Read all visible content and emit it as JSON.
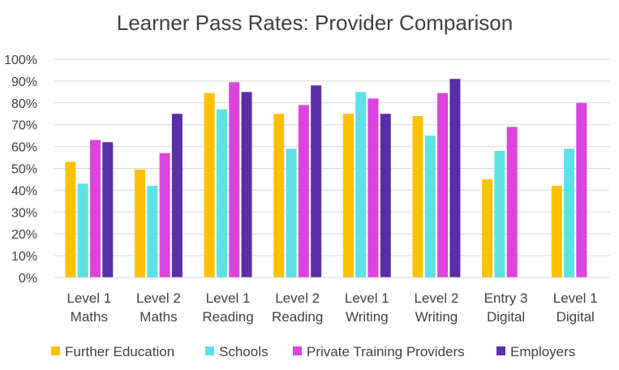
{
  "chart_data": {
    "type": "bar",
    "title": "Learner Pass Rates: Provider Comparison",
    "xlabel": "",
    "ylabel": "",
    "ylim": [
      0,
      100
    ],
    "y_ticks": [
      "0%",
      "10%",
      "20%",
      "30%",
      "40%",
      "50%",
      "60%",
      "70%",
      "80%",
      "90%",
      "100%"
    ],
    "y_tick_values": [
      0,
      10,
      20,
      30,
      40,
      50,
      60,
      70,
      80,
      90,
      100
    ],
    "categories": [
      [
        "Level 1",
        "Maths"
      ],
      [
        "Level 2",
        "Maths"
      ],
      [
        "Level 1",
        "Reading"
      ],
      [
        "Level 2",
        "Reading"
      ],
      [
        "Level 1",
        "Writing"
      ],
      [
        "Level 2",
        "Writing"
      ],
      [
        "Entry 3",
        "Digital"
      ],
      [
        "Level 1",
        "Digital"
      ]
    ],
    "grid": true,
    "legend_position": "bottom",
    "series": [
      {
        "name": "Further Education",
        "color": "#FFC000",
        "values": [
          53,
          49.5,
          84.5,
          75,
          75,
          74,
          45,
          42
        ]
      },
      {
        "name": "Schools",
        "color": "#5CE1E6",
        "values": [
          43,
          42,
          77,
          59,
          85,
          65,
          58,
          59
        ]
      },
      {
        "name": "Private Training Providers",
        "color": "#DD44DD",
        "values": [
          63,
          57,
          89.5,
          79,
          82,
          84.5,
          69,
          80
        ]
      },
      {
        "name": "Employers",
        "color": "#5B2DA8",
        "values": [
          62,
          75,
          85,
          88,
          75,
          91,
          null,
          null
        ]
      }
    ]
  }
}
